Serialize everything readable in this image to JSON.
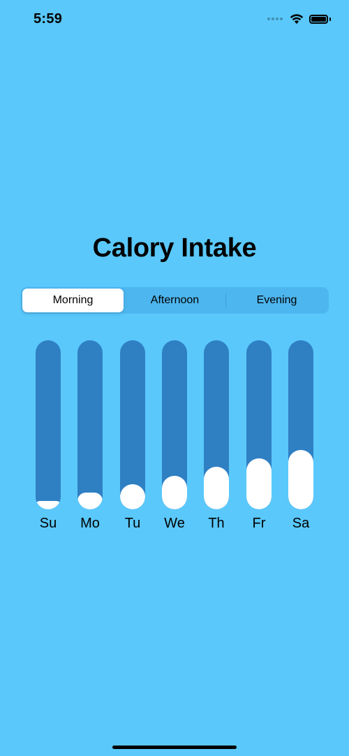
{
  "status_bar": {
    "time": "5:59",
    "icons": [
      "signal-icon",
      "wifi-icon",
      "battery-icon"
    ]
  },
  "title": "Calory Intake",
  "segments": {
    "items": [
      {
        "label": "Morning",
        "selected": true
      },
      {
        "label": "Afternoon",
        "selected": false
      },
      {
        "label": "Evening",
        "selected": false
      }
    ]
  },
  "colors": {
    "background": "#5AC8FA",
    "bar_track": "#2F7FC3",
    "bar_fill": "#FFFFFF"
  },
  "chart_data": {
    "type": "bar",
    "categories": [
      "Su",
      "Mo",
      "Tu",
      "We",
      "Th",
      "Fr",
      "Sa"
    ],
    "values": [
      0.05,
      0.1,
      0.15,
      0.2,
      0.25,
      0.3,
      0.35
    ],
    "ylim": [
      0,
      1
    ]
  }
}
